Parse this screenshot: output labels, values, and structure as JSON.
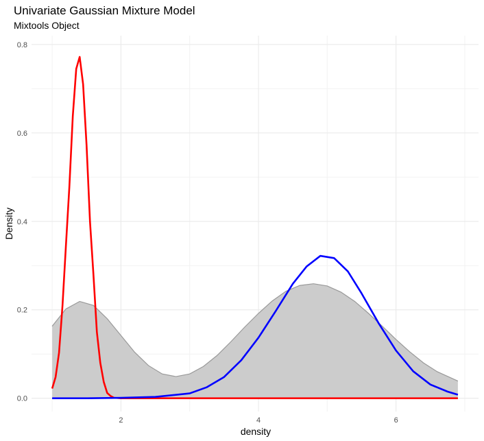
{
  "chart_data": {
    "type": "area",
    "title": "Univariate Gaussian Mixture Model",
    "subtitle": "Mixtools Object",
    "xlabel": "density",
    "ylabel": "Density",
    "xlim": [
      0.7,
      7.2
    ],
    "ylim": [
      -0.03,
      0.82
    ],
    "x_ticks": [
      2,
      4,
      6
    ],
    "y_ticks": [
      0.0,
      0.2,
      0.4,
      0.6,
      0.8
    ],
    "grid": true,
    "legend": "none",
    "density_fill": {
      "fill_color": "#cccccc",
      "line_color": "#999999",
      "points": [
        [
          1.0,
          0.163
        ],
        [
          1.2,
          0.202
        ],
        [
          1.4,
          0.219
        ],
        [
          1.6,
          0.21
        ],
        [
          1.8,
          0.18
        ],
        [
          2.0,
          0.142
        ],
        [
          2.2,
          0.104
        ],
        [
          2.4,
          0.074
        ],
        [
          2.6,
          0.055
        ],
        [
          2.8,
          0.049
        ],
        [
          3.0,
          0.055
        ],
        [
          3.2,
          0.072
        ],
        [
          3.4,
          0.097
        ],
        [
          3.6,
          0.128
        ],
        [
          3.8,
          0.161
        ],
        [
          4.0,
          0.192
        ],
        [
          4.2,
          0.22
        ],
        [
          4.4,
          0.242
        ],
        [
          4.6,
          0.255
        ],
        [
          4.8,
          0.259
        ],
        [
          5.0,
          0.254
        ],
        [
          5.2,
          0.24
        ],
        [
          5.4,
          0.219
        ],
        [
          5.6,
          0.192
        ],
        [
          5.8,
          0.163
        ],
        [
          6.0,
          0.133
        ],
        [
          6.2,
          0.105
        ],
        [
          6.4,
          0.08
        ],
        [
          6.6,
          0.06
        ],
        [
          6.9,
          0.039
        ]
      ]
    },
    "series": [
      {
        "color": "#ff0000",
        "points": [
          [
            1.0,
            0.022
          ],
          [
            1.05,
            0.048
          ],
          [
            1.1,
            0.103
          ],
          [
            1.15,
            0.209
          ],
          [
            1.2,
            0.345
          ],
          [
            1.25,
            0.478
          ],
          [
            1.3,
            0.638
          ],
          [
            1.35,
            0.745
          ],
          [
            1.4,
            0.772
          ],
          [
            1.45,
            0.71
          ],
          [
            1.5,
            0.573
          ],
          [
            1.55,
            0.4
          ],
          [
            1.6,
            0.28
          ],
          [
            1.65,
            0.15
          ],
          [
            1.7,
            0.08
          ],
          [
            1.75,
            0.037
          ],
          [
            1.8,
            0.012
          ],
          [
            1.85,
            0.005
          ],
          [
            1.9,
            0.001
          ],
          [
            2.0,
            0.0
          ],
          [
            3.0,
            0.0
          ],
          [
            4.0,
            0.0
          ],
          [
            5.0,
            0.0
          ],
          [
            6.0,
            0.0
          ],
          [
            6.9,
            0.0
          ]
        ]
      },
      {
        "color": "#0000ff",
        "points": [
          [
            1.0,
            0.0
          ],
          [
            1.5,
            0.0
          ],
          [
            2.0,
            0.001
          ],
          [
            2.5,
            0.003
          ],
          [
            3.0,
            0.011
          ],
          [
            3.25,
            0.025
          ],
          [
            3.5,
            0.048
          ],
          [
            3.75,
            0.086
          ],
          [
            4.0,
            0.137
          ],
          [
            4.25,
            0.197
          ],
          [
            4.5,
            0.259
          ],
          [
            4.7,
            0.298
          ],
          [
            4.9,
            0.322
          ],
          [
            5.1,
            0.317
          ],
          [
            5.3,
            0.287
          ],
          [
            5.5,
            0.237
          ],
          [
            5.75,
            0.169
          ],
          [
            6.0,
            0.108
          ],
          [
            6.25,
            0.061
          ],
          [
            6.5,
            0.031
          ],
          [
            6.75,
            0.015
          ],
          [
            6.9,
            0.008
          ]
        ]
      }
    ]
  }
}
